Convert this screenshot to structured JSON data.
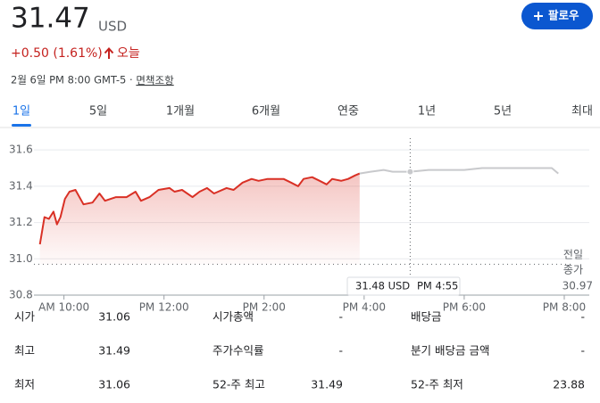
{
  "header": {
    "price": "31.47",
    "currency": "USD",
    "change": "+0.50 (1.61%)",
    "period": "오늘",
    "timestamp": "2월 6일 PM 8:00 GMT-5 · ",
    "disclaimer": "면책조항",
    "follow": "팔로우"
  },
  "tabs": {
    "items": [
      "1일",
      "5일",
      "1개월",
      "6개월",
      "연중",
      "1년",
      "5년",
      "최대"
    ],
    "selected": 0
  },
  "chart_data": {
    "type": "line",
    "xlim": [
      9.4,
      20.5
    ],
    "xticks": [
      {
        "value": 10,
        "label": "AM 10:00"
      },
      {
        "value": 12,
        "label": "PM 12:00"
      },
      {
        "value": 14,
        "label": "PM 2:00"
      },
      {
        "value": 16,
        "label": "PM 4:00"
      },
      {
        "value": 18,
        "label": "PM 6:00"
      },
      {
        "value": 20,
        "label": "PM 8:00"
      }
    ],
    "ylim": [
      30.8,
      31.65
    ],
    "yticks": [
      30.8,
      {
        "value": 31,
        "label": "31.0"
      },
      31.2,
      31.4,
      31.6
    ],
    "grid": true,
    "series": [
      {
        "color": "#d93025",
        "area": true,
        "x": [
          9.52,
          9.61,
          9.7,
          9.79,
          9.86,
          9.93,
          10.02,
          10.11,
          10.23,
          10.39,
          10.57,
          10.71,
          10.82,
          11.04,
          11.25,
          11.43,
          11.54,
          11.71,
          11.89,
          12.11,
          12.21,
          12.36,
          12.57,
          12.71,
          12.86,
          13.0,
          13.25,
          13.39,
          13.57,
          13.75,
          13.89,
          14.07,
          14.39,
          14.54,
          14.68,
          14.79,
          14.96,
          15.11,
          15.25,
          15.36,
          15.54,
          15.68,
          15.82,
          15.91
        ],
        "values": [
          31.08,
          31.23,
          31.22,
          31.26,
          31.19,
          31.23,
          31.33,
          31.37,
          31.38,
          31.3,
          31.31,
          31.36,
          31.32,
          31.34,
          31.34,
          31.37,
          31.32,
          31.34,
          31.38,
          31.39,
          31.37,
          31.38,
          31.34,
          31.37,
          31.39,
          31.36,
          31.39,
          31.38,
          31.42,
          31.44,
          31.43,
          31.44,
          31.44,
          31.42,
          31.4,
          31.44,
          31.45,
          31.43,
          31.41,
          31.44,
          31.43,
          31.44,
          31.46,
          31.47
        ]
      },
      {
        "color": "#c8c9cc",
        "area": false,
        "x": [
          15.91,
          16.13,
          16.39,
          16.57,
          16.92,
          17.29,
          17.64,
          18.0,
          18.36,
          18.71,
          18.98,
          19.43,
          19.75,
          19.88
        ],
        "values": [
          31.47,
          31.48,
          31.49,
          31.48,
          31.48,
          31.49,
          31.49,
          31.49,
          31.5,
          31.5,
          31.5,
          31.5,
          31.5,
          31.47
        ]
      }
    ],
    "reference": {
      "value": 30.97,
      "lines": [
        "전일",
        "종가"
      ]
    },
    "tooltip": {
      "x": 16.92,
      "value": 31.48,
      "label": "31.48 USD",
      "time": "PM 4:55"
    }
  },
  "stats": {
    "rows": [
      [
        "시가",
        "31.06",
        "시가총액",
        "-",
        "배당금",
        "-"
      ],
      [
        "최고",
        "31.49",
        "주가수익률",
        "-",
        "분기 배당금 금액",
        "-"
      ],
      [
        "최저",
        "31.06",
        "52-주 최고",
        "31.49",
        "52-주 최저",
        "23.88"
      ]
    ]
  }
}
